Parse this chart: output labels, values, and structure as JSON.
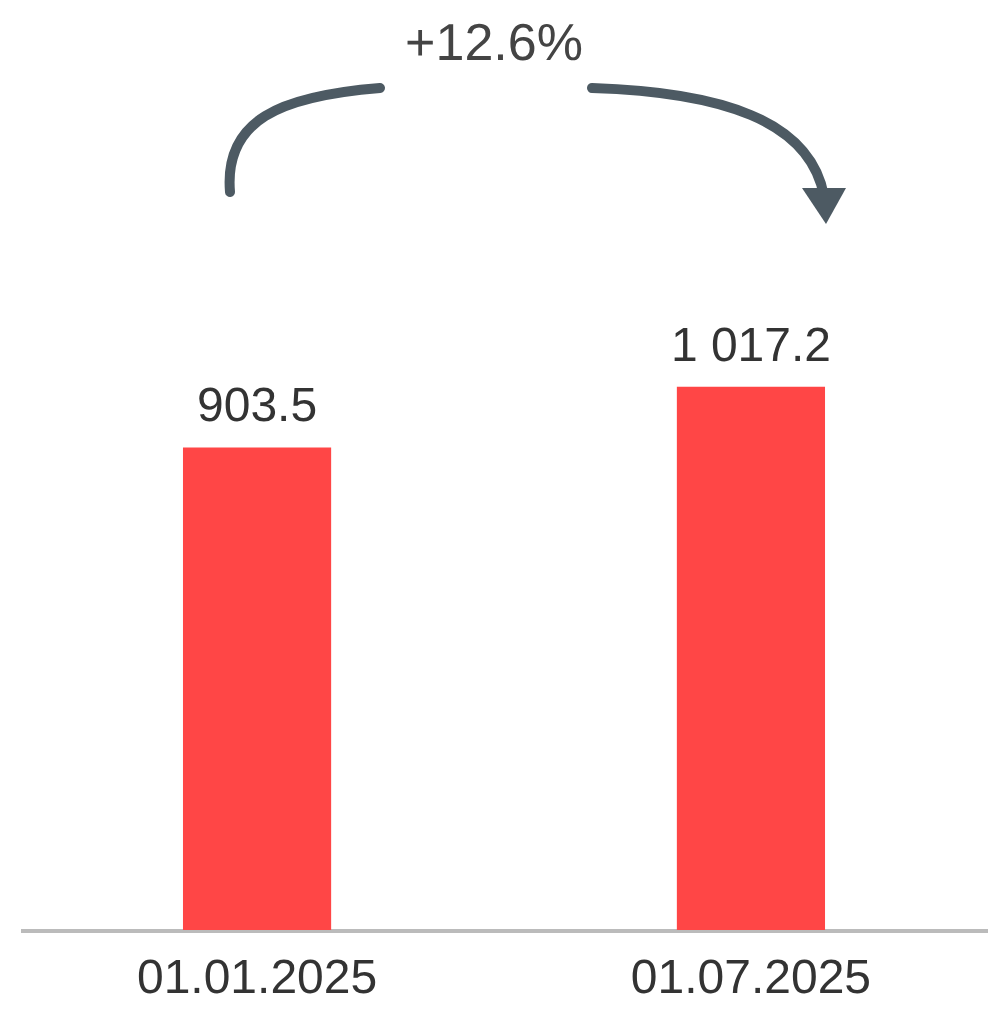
{
  "chart_data": {
    "type": "bar",
    "categories": [
      "01.01.2025",
      "01.07.2025"
    ],
    "values": [
      903.5,
      1017.2
    ],
    "value_labels": [
      "903.5",
      "1 017.2"
    ],
    "color": "#ff4646",
    "annotations": [
      "+12.6%"
    ]
  }
}
